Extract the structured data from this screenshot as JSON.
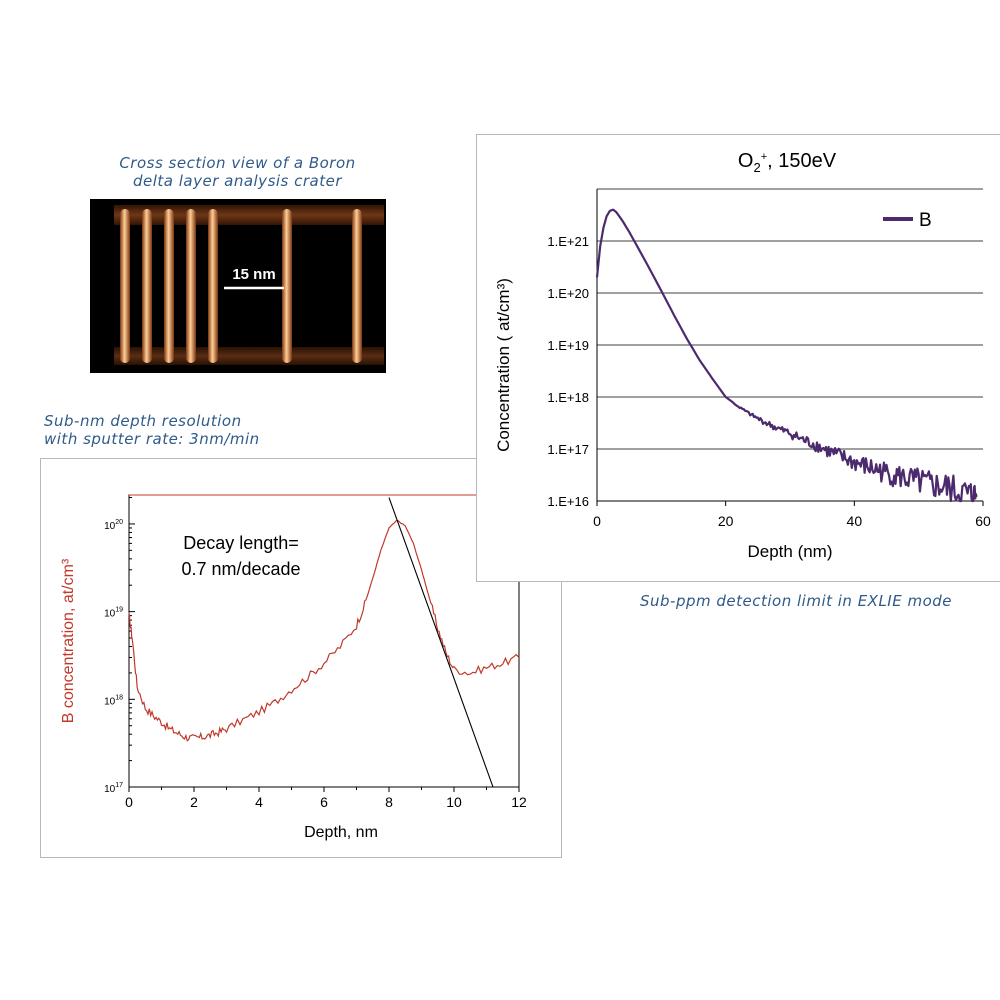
{
  "captions": {
    "crater": [
      "Cross section view of a Boron",
      "delta layer analysis crater"
    ],
    "resolution": [
      "Sub-nm depth resolution",
      "with sputter rate: 3nm/min"
    ],
    "detection": "Sub-ppm detection limit in EXLIE mode"
  },
  "crater_image": {
    "scale_label": "15 nm",
    "colors": {
      "background": "#000000",
      "glow": "#e8893a",
      "core": "#ffd9a8"
    }
  },
  "chart_data": [
    {
      "type": "line",
      "title": "",
      "xlabel": "Depth, nm",
      "ylabel": "B concentration, at/cm³",
      "xlim": [
        0,
        12
      ],
      "x_ticks": [
        0,
        2,
        4,
        6,
        8,
        10,
        12
      ],
      "y_scale": "log",
      "ylim": [
        1e+17,
        1e+20
      ],
      "y_ticks": [
        {
          "value": 1e+17,
          "label": "10",
          "exp": "17"
        },
        {
          "value": 1e+18,
          "label": "10",
          "exp": "18"
        },
        {
          "value": 1e+19,
          "label": "10",
          "exp": "19"
        },
        {
          "value": 1e+20,
          "label": "10",
          "exp": "20"
        }
      ],
      "annotation": [
        "Decay length=",
        "0.7 nm/decade"
      ],
      "grid": false,
      "series": [
        {
          "color": "#c0392b",
          "x": [
            0,
            0.1,
            0.25,
            0.5,
            0.75,
            1.0,
            1.25,
            1.5,
            1.75,
            2.0,
            2.25,
            2.5,
            2.75,
            3.0,
            3.5,
            4.0,
            4.5,
            5.0,
            5.5,
            6.0,
            6.5,
            7.0,
            7.25,
            7.5,
            7.75,
            8.0,
            8.25,
            8.5,
            8.75,
            9.0,
            9.25,
            9.5,
            9.75,
            10.0,
            10.5,
            11.0,
            11.5,
            12.0
          ],
          "y": [
            9e+18,
            5e+18,
            1.4e+18,
            8e+17,
            6.5e+17,
            5.5e+17,
            4.6e+17,
            4.1e+17,
            3.7e+17,
            3.6e+17,
            3.7e+17,
            3.9e+17,
            4.2e+17,
            4.6e+17,
            5.8e+17,
            7.2e+17,
            9.3e+17,
            1.3e+18,
            1.8e+18,
            2.6e+18,
            4e+18,
            7e+18,
            1.2e+19,
            2.4e+19,
            5e+19,
            9e+19,
            1.1e+20,
            9.5e+19,
            6e+19,
            3e+19,
            1.4e+19,
            6.5e+18,
            3.4e+18,
            2.2e+18,
            2e+18,
            2.3e+18,
            2.6e+18,
            3e+18
          ]
        },
        {
          "color": "#000000",
          "x": [
            8.0,
            11.2
          ],
          "y": [
            2e+20,
            1e+17
          ]
        }
      ]
    },
    {
      "type": "line",
      "title": "O2+, 150eV",
      "title_main": "O",
      "title_sub": "2",
      "title_sup": "+",
      "title_rest": ", 150eV",
      "xlabel": "Depth (nm)",
      "ylabel": "Concentration ( at/cm³)",
      "xlim": [
        0,
        60
      ],
      "x_ticks": [
        0,
        20,
        40,
        60
      ],
      "y_scale": "log",
      "ylim": [
        1e+16,
        1e+22
      ],
      "y_ticks": [
        {
          "value": 1e+16,
          "label": "1.E+16"
        },
        {
          "value": 1e+17,
          "label": "1.E+17"
        },
        {
          "value": 1e+18,
          "label": "1.E+18"
        },
        {
          "value": 1e+19,
          "label": "1.E+19"
        },
        {
          "value": 1e+20,
          "label": "1.E+20"
        },
        {
          "value": 1e+21,
          "label": "1.E+21"
        }
      ],
      "grid": true,
      "legend": "top-right",
      "series": [
        {
          "name": "B",
          "color": "#4b2a6e",
          "x": [
            0,
            0.5,
            1,
            1.5,
            2,
            2.5,
            3,
            4,
            5,
            6,
            8,
            10,
            12,
            14,
            16,
            18,
            20,
            22,
            24,
            26,
            28,
            30,
            32,
            34,
            36,
            38,
            40,
            42,
            44,
            46,
            48,
            50,
            52,
            54,
            56,
            58,
            59
          ],
          "y": [
            2e+20,
            8e+20,
            1.8e+21,
            3e+21,
            3.8e+21,
            4e+21,
            3.6e+21,
            2.4e+21,
            1.5e+21,
            9e+20,
            3.2e+20,
            1.1e+20,
            3.7e+19,
            1.3e+19,
            5e+18,
            2.2e+18,
            1e+18,
            6.5e+17,
            4.5e+17,
            3.3e+17,
            2.5e+17,
            2e+17,
            1.5e+17,
            1.2e+17,
            9e+16,
            7e+16,
            5.5e+16,
            4.5e+16,
            3.8e+16,
            3.2e+16,
            2.7e+16,
            2.3e+16,
            2e+16,
            1.8e+16,
            1.5e+16,
            1.3e+16,
            1.2e+16
          ]
        }
      ]
    }
  ]
}
